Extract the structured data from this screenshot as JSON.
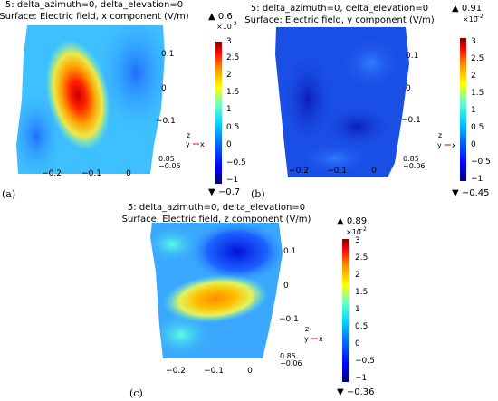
{
  "chart_data": [
    {
      "panel_label": "(a)",
      "type": "heatmap",
      "title_line1": "5: delta_azimuth=0, delta_elevation=0",
      "title_line2": "Surface: Electric field, x component (V/m)",
      "max_marker": "▲ 0.6",
      "min_marker": "▼ −0.7",
      "colorbar_multiplier": "×10",
      "colorbar_exponent": "−2",
      "colorbar_ticks": [
        "3",
        "2.5",
        "2",
        "1.5",
        "1",
        "0.5",
        "0",
        "−0.5",
        "−1"
      ],
      "colorbar_range": [
        -1,
        3
      ],
      "x_ticks": [
        "−0.2",
        "−0.1",
        "0"
      ],
      "y_ticks": [
        "0.1",
        "0",
        "−0.1"
      ],
      "depth_ticks": [
        "0.85",
        "−0.06"
      ],
      "triad": {
        "z": "z",
        "y": "y",
        "x": "x"
      },
      "surface_max": 0.6,
      "surface_min": -0.7,
      "hotspots": [
        {
          "x": -0.14,
          "y": 0.01,
          "value": 0.6
        }
      ]
    },
    {
      "panel_label": "(b)",
      "type": "heatmap",
      "title_line1": "5: delta_azimuth=0, delta_elevation=0",
      "title_line2": "Surface: Electric field, y component (V/m)",
      "max_marker": "▲ 0.91",
      "min_marker": "▼ −0.45",
      "colorbar_multiplier": "×10",
      "colorbar_exponent": "−2",
      "colorbar_ticks": [
        "3",
        "2.5",
        "2",
        "1.5",
        "1",
        "0.5",
        "0",
        "−0.5",
        "−1"
      ],
      "colorbar_range": [
        -1,
        3
      ],
      "x_ticks": [
        "−0.2",
        "−0.1",
        "0"
      ],
      "y_ticks": [
        "0.1",
        "0",
        "−0.1"
      ],
      "depth_ticks": [
        "0.85",
        "−0.06"
      ],
      "triad": {
        "z": "z",
        "y": "y",
        "x": "x"
      },
      "surface_max": 0.91,
      "surface_min": -0.45
    },
    {
      "panel_label": "(c)",
      "type": "heatmap",
      "title_line1": "5: delta_azimuth=0, delta_elevation=0",
      "title_line2": "Surface: Electric field, z component (V/m)",
      "max_marker": "▲ 0.89",
      "min_marker": "▼ −0.36",
      "colorbar_multiplier": "×10",
      "colorbar_exponent": "−2",
      "colorbar_ticks": [
        "3",
        "2.5",
        "2",
        "1.5",
        "1",
        "0.5",
        "0",
        "−0.5",
        "−1"
      ],
      "colorbar_range": [
        -1,
        3
      ],
      "x_ticks": [
        "−0.2",
        "−0.1",
        "0"
      ],
      "y_ticks": [
        "0.1",
        "0",
        "−0.1"
      ],
      "depth_ticks": [
        "0.85",
        "−0.06"
      ],
      "triad": {
        "z": "z",
        "y": "y",
        "x": "x"
      },
      "surface_max": 0.89,
      "surface_min": -0.36,
      "hotspots": [
        {
          "x": -0.09,
          "y": -0.03,
          "value": 0.89
        }
      ]
    }
  ],
  "colors": {
    "colormap": [
      "#00007f",
      "#0000ff",
      "#0077ff",
      "#00d4ff",
      "#66ffcc",
      "#ffff00",
      "#ff8800",
      "#ff0000",
      "#7f0000"
    ],
    "panel_a_background": "#33bbff",
    "panel_b_background": "#1a4fe6",
    "panel_c_background": "#3aa8ff"
  }
}
